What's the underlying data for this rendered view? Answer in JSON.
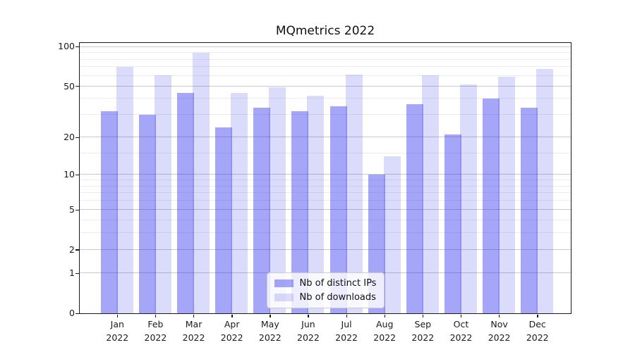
{
  "title": "MQmetrics 2022",
  "chart_data": {
    "type": "bar",
    "title": "MQmetrics 2022",
    "categories": [
      "Jan 2022",
      "Feb 2022",
      "Mar 2022",
      "Apr 2022",
      "May 2022",
      "Jun 2022",
      "Jul 2022",
      "Aug 2022",
      "Sep 2022",
      "Oct 2022",
      "Nov 2022",
      "Dec 2022"
    ],
    "series": [
      {
        "name": "Nb of distinct IPs",
        "color_hex": "#a6a6f8",
        "color_rgba": "rgba(43,43,238,0.42)",
        "values": [
          32,
          30,
          44,
          24,
          34,
          32,
          35,
          10,
          36,
          21,
          40,
          34
        ]
      },
      {
        "name": "Nb of downloads",
        "color_hex": "#dbdbfb",
        "color_rgba": "rgba(43,43,238,0.17)",
        "values": [
          70,
          60,
          90,
          44,
          49,
          42,
          61,
          14,
          60,
          51,
          59,
          67
        ]
      }
    ],
    "xlabel": "",
    "ylabel": "",
    "yscale": "log1p",
    "y_ticks": [
      0,
      1,
      2,
      5,
      10,
      20,
      50,
      100
    ],
    "y_minor_ticks": [
      3,
      4,
      6,
      7,
      8,
      9,
      15,
      30,
      40,
      60,
      70,
      80,
      90
    ],
    "ylim": [
      0,
      107
    ],
    "grid": true,
    "legend_position": "lower center"
  },
  "colors": {
    "background": "#ffffff",
    "axis": "#1a1a1a",
    "grid_major": "#c9c9c9",
    "grid_minor": "#ececec",
    "text": "#1a1a1a"
  }
}
